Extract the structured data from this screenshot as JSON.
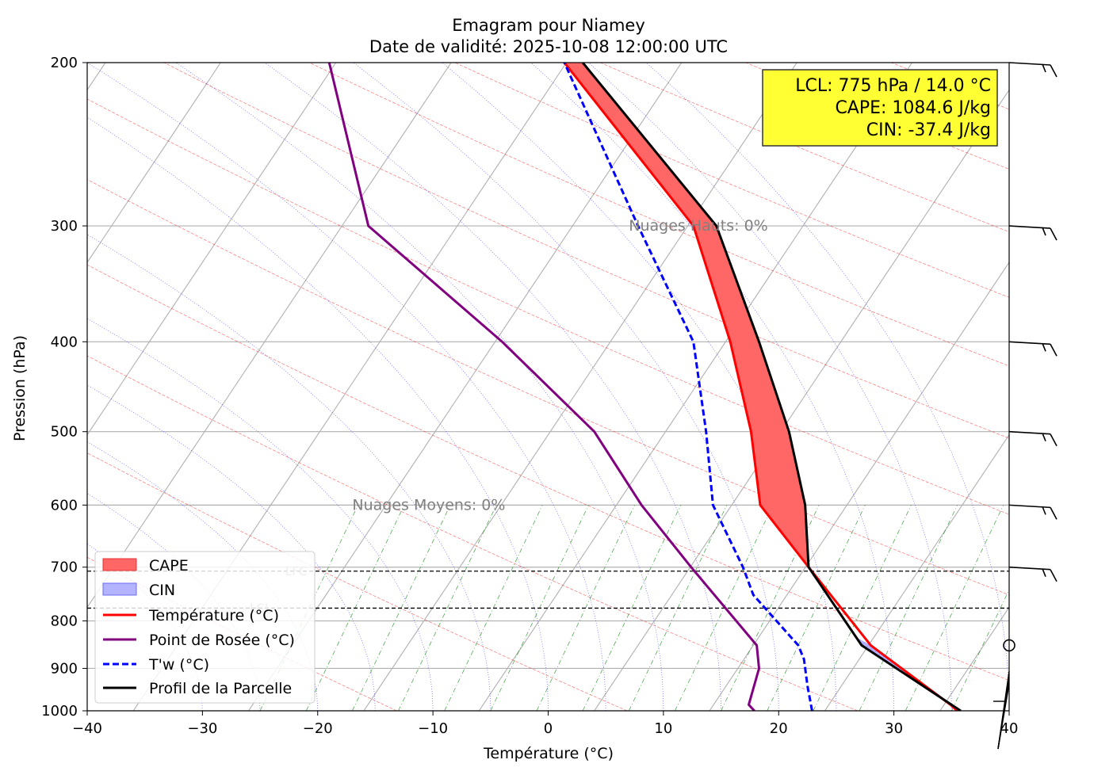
{
  "chart_data": {
    "type": "line",
    "title": "Emagram pour Niamey",
    "subtitle": "Date de validité: 2025-10-08 12:00:00 UTC",
    "xlabel": "Température (°C)",
    "ylabel": "Pression (hPa)",
    "xlim": [
      -40,
      40
    ],
    "ylim": [
      1000,
      200
    ],
    "y_scale": "log",
    "x_ticks": [
      -40,
      -30,
      -20,
      -10,
      0,
      10,
      20,
      30,
      40
    ],
    "x_tick_labels": [
      "−40",
      "−30",
      "−20",
      "−10",
      "0",
      "10",
      "20",
      "30",
      "40"
    ],
    "y_ticks": [
      200,
      300,
      400,
      500,
      600,
      700,
      800,
      900,
      1000
    ],
    "y_tick_labels": [
      "200",
      "300",
      "400",
      "500",
      "600",
      "700",
      "800",
      "900",
      "1000"
    ],
    "grid": true,
    "series": [
      {
        "name": "Température (°C)",
        "color": "#ff0000",
        "style": "solid",
        "points": [
          [
            35.5,
            1000
          ],
          [
            34.9,
            985
          ],
          [
            28.0,
            850
          ],
          [
            22.6,
            700
          ],
          [
            18.4,
            600
          ],
          [
            17.6,
            500
          ],
          [
            15.8,
            400
          ],
          [
            12.6,
            300
          ],
          [
            1.4,
            200
          ]
        ]
      },
      {
        "name": "Point de Rosée (°C)",
        "color": "#800080",
        "style": "solid",
        "points": [
          [
            17.9,
            1000
          ],
          [
            17.4,
            985
          ],
          [
            18.3,
            900
          ],
          [
            18.1,
            850
          ],
          [
            12.4,
            700
          ],
          [
            8.1,
            600
          ],
          [
            4.0,
            500
          ],
          [
            -4.0,
            400
          ],
          [
            -15.6,
            300
          ],
          [
            -19.0,
            200
          ]
        ]
      },
      {
        "name": "T'w (°C)",
        "color": "#0000ff",
        "style": "dashed",
        "points": [
          [
            22.9,
            1000
          ],
          [
            22.5,
            940
          ],
          [
            22.2,
            880
          ],
          [
            21.7,
            850
          ],
          [
            17.8,
            750
          ],
          [
            16.9,
            700
          ],
          [
            14.3,
            600
          ],
          [
            13.7,
            500
          ],
          [
            12.6,
            400
          ],
          [
            7.8,
            300
          ],
          [
            1.4,
            200
          ]
        ]
      },
      {
        "name": "Profil de la Parcelle",
        "color": "#000000",
        "style": "solid",
        "points": [
          [
            35.8,
            1000
          ],
          [
            27.2,
            850
          ],
          [
            22.6,
            700
          ],
          [
            22.3,
            600
          ],
          [
            20.9,
            500
          ],
          [
            18.3,
            400
          ],
          [
            14.6,
            300
          ],
          [
            3.0,
            200
          ]
        ]
      }
    ],
    "cape_label": "CAPE",
    "cin_label": "CIN",
    "cape_color": "#ff6666",
    "cin_color": "#b3b3ff",
    "lcl_pressure": 775,
    "lfc_pressure": 707,
    "lcl_label": "LCL",
    "lfc_label": "LFC",
    "annotations": [
      {
        "text": "Nuages Hauts: 0%",
        "temp": 7.0,
        "pressure": 300
      },
      {
        "text": "Nuages Moyens: 0%",
        "temp": -17.0,
        "pressure": 600
      }
    ],
    "info_box": {
      "lines": [
        "LCL: 775 hPa / 14.0 °C",
        "CAPE: 1084.6 J/kg",
        "CIN: -37.4 J/kg"
      ],
      "placement": "top-right",
      "background": "#ffff33"
    },
    "wind_levels_hpa": [
      200,
      300,
      400,
      500,
      600,
      700,
      850,
      1000
    ],
    "legend_placement": "lower-left",
    "colors": {
      "grid": "#b0b0b0",
      "dry_adiabat": "#ff0000",
      "moist_adiabat": "#0000ff",
      "mixing_ratio": "#008000",
      "level_line": "#000000"
    }
  }
}
